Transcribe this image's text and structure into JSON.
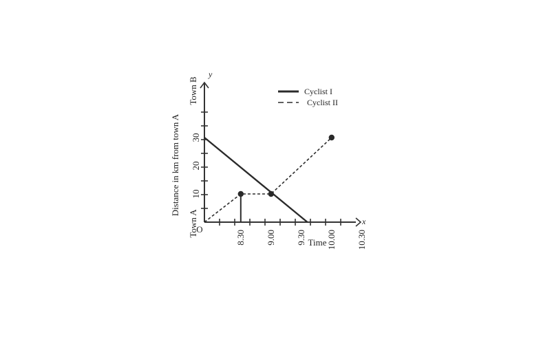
{
  "chart_data": {
    "type": "line",
    "xlabel": "Time",
    "ylabel": "Distance in km from town A",
    "x_axis_letter": "x",
    "y_axis_letter": "y",
    "origin_label": "O",
    "town_a_label": "Town A",
    "town_b_label": "Town B",
    "x_ticks": [
      {
        "value": 8.5,
        "label": "8.30"
      },
      {
        "value": 9.0,
        "label": "9.00"
      },
      {
        "value": 9.5,
        "label": "9.30"
      },
      {
        "value": 10.0,
        "label": "10.00"
      },
      {
        "value": 10.5,
        "label": "10.30"
      }
    ],
    "y_ticks": [
      {
        "value": 10,
        "label": "10"
      },
      {
        "value": 20,
        "label": "20"
      },
      {
        "value": 30,
        "label": "30"
      }
    ],
    "xlim": [
      7.9,
      13.0
    ],
    "ylim": [
      0,
      50
    ],
    "series": [
      {
        "name": "Cyclist I",
        "style": "solid",
        "points": [
          [
            7.9,
            30
          ],
          [
            9.6,
            0
          ]
        ],
        "markers": [
          [
            9.0,
            10
          ]
        ]
      },
      {
        "name": "Cyclist II",
        "style": "dashed",
        "points": [
          [
            7.9,
            0
          ],
          [
            8.5,
            10
          ],
          [
            9.0,
            10
          ],
          [
            10.0,
            30
          ]
        ],
        "markers": [
          [
            8.5,
            10
          ],
          [
            10.0,
            30
          ]
        ]
      }
    ],
    "legend_position": "top-right",
    "colors": {
      "line": "#2a2a2a",
      "axis": "#333333"
    }
  }
}
